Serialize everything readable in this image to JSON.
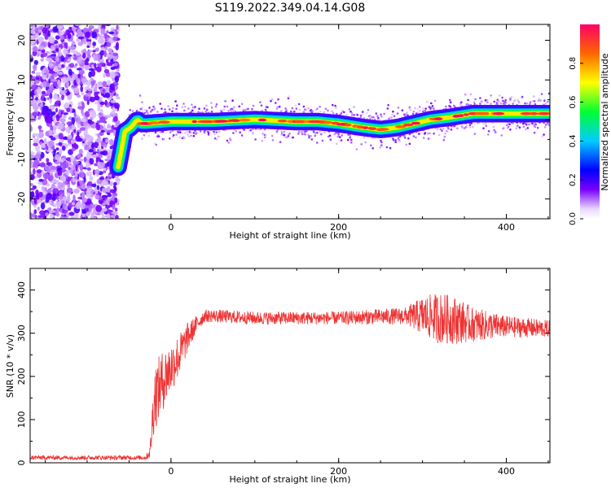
{
  "title": "S119.2022.349.04.14.G08",
  "chart_data": [
    {
      "type": "heatmap",
      "xlabel": "Height of straight line (km)",
      "ylabel": "Frequency (Hz)",
      "xlim": [
        -168,
        452
      ],
      "ylim": [
        -25,
        24
      ],
      "x_ticks": [
        0,
        200,
        400
      ],
      "y_ticks": [
        20,
        10,
        0,
        -10,
        -20
      ],
      "noise_region_x": [
        -168,
        -63
      ],
      "signal_track": {
        "x": [
          -63,
          -55,
          -48,
          -40,
          -35,
          -30,
          0,
          50,
          100,
          150,
          175,
          200,
          215,
          230,
          250,
          270,
          290,
          310,
          330,
          345,
          360,
          400,
          452
        ],
        "y": [
          -12,
          -3,
          -2,
          0,
          -1,
          -1,
          -0.5,
          -0.5,
          0,
          -0.5,
          -0.5,
          -1,
          -1.5,
          -2,
          -2.5,
          -2,
          -1,
          0,
          0.5,
          1,
          1.5,
          1.5,
          1.5
        ]
      },
      "colorbar": {
        "label": "Normalized spectral amplitude",
        "range": [
          0,
          1
        ],
        "ticks": [
          0.0,
          0.2,
          0.4,
          0.6,
          0.8
        ],
        "tick_labels": [
          "0.0",
          "0.2",
          "0.4",
          "0.6",
          "0.8"
        ]
      }
    },
    {
      "type": "line",
      "xlabel": "Height of straight line (km)",
      "ylabel": "SNR (10 * v/v)",
      "xlim": [
        -168,
        452
      ],
      "ylim": [
        0,
        450
      ],
      "x_ticks": [
        0,
        200,
        400
      ],
      "y_ticks": [
        0,
        100,
        200,
        300,
        400
      ],
      "color": "#ee3333",
      "envelope": {
        "x": [
          -168,
          -30,
          -25,
          -20,
          -10,
          0,
          10,
          20,
          30,
          40,
          50,
          100,
          200,
          280,
          300,
          320,
          340,
          360,
          400,
          452
        ],
        "mean": [
          12,
          12,
          25,
          150,
          190,
          220,
          250,
          290,
          320,
          340,
          340,
          335,
          335,
          340,
          340,
          335,
          330,
          320,
          315,
          310
        ],
        "spread": [
          5,
          5,
          15,
          80,
          70,
          60,
          50,
          35,
          20,
          15,
          15,
          15,
          15,
          20,
          45,
          60,
          55,
          40,
          25,
          20
        ]
      }
    }
  ]
}
